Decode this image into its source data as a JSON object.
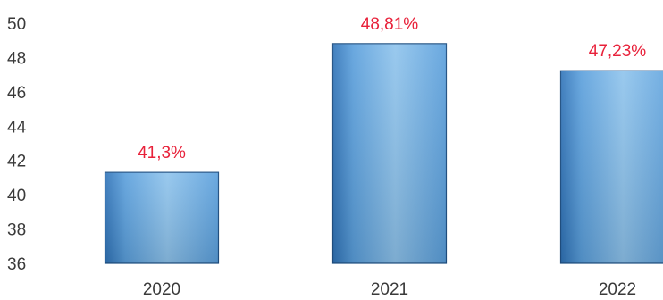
{
  "chart_data": {
    "type": "bar",
    "categories": [
      "2020",
      "2021",
      "2022"
    ],
    "values": [
      41.3,
      48.81,
      47.23
    ],
    "data_labels": [
      "41,3%",
      "48,81%",
      "47,23%"
    ],
    "ylim": [
      36,
      50
    ],
    "yticks": [
      "36",
      "38",
      "40",
      "42",
      "44",
      "46",
      "48",
      "50"
    ],
    "ytick_values": [
      36,
      38,
      40,
      42,
      44,
      46,
      48,
      50
    ],
    "title": "",
    "xlabel": "",
    "ylabel": "",
    "grid": false,
    "legend": "none",
    "colors": {
      "bar_light": "#8ec3ec",
      "bar_mid": "#5a9fdc",
      "bar_dark": "#2f73b8",
      "bar_edge": "#1f4f82",
      "data_label": "#e8213a",
      "tick_text": "#3a3a3a"
    }
  }
}
